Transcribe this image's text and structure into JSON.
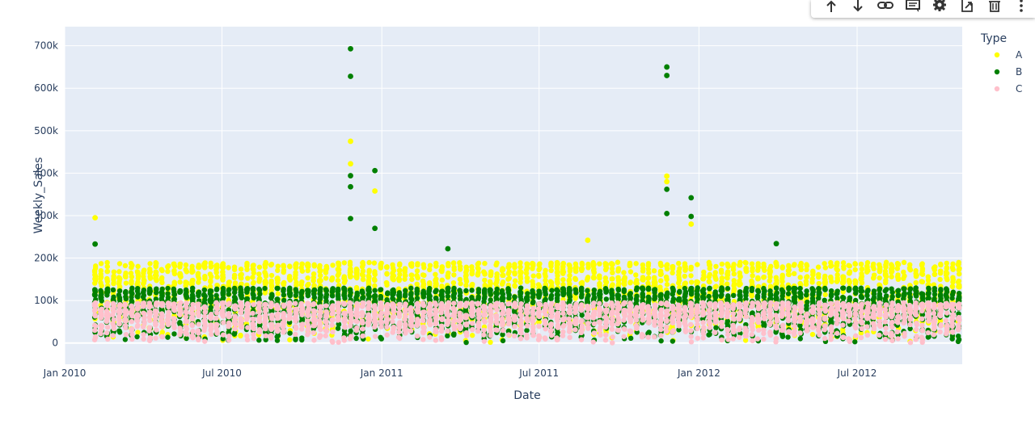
{
  "toolbar": {
    "buttons": [
      {
        "icon": "arrow-up-icon"
      },
      {
        "icon": "arrow-down-icon"
      },
      {
        "icon": "link-icon"
      },
      {
        "icon": "comment-icon"
      },
      {
        "icon": "gear-icon"
      },
      {
        "icon": "export-icon"
      },
      {
        "icon": "trash-icon"
      },
      {
        "icon": "more-vert-icon"
      }
    ]
  },
  "chart_data": {
    "type": "scatter",
    "xlabel": "Date",
    "ylabel": "Weekly_Sales",
    "xlim": [
      "2010-01-01",
      "2012-10-30"
    ],
    "ylim": [
      -50000,
      745000
    ],
    "x_ticks": [
      {
        "date": "2010-01-01",
        "label": "Jan 2010"
      },
      {
        "date": "2010-07-01",
        "label": "Jul 2010"
      },
      {
        "date": "2011-01-01",
        "label": "Jan 2011"
      },
      {
        "date": "2011-07-01",
        "label": "Jul 2011"
      },
      {
        "date": "2012-01-01",
        "label": "Jan 2012"
      },
      {
        "date": "2012-07-01",
        "label": "Jul 2012"
      }
    ],
    "y_ticks": [
      {
        "value": 0,
        "label": "0"
      },
      {
        "value": 100000,
        "label": "100k"
      },
      {
        "value": 200000,
        "label": "200k"
      },
      {
        "value": 300000,
        "label": "300k"
      },
      {
        "value": 400000,
        "label": "400k"
      },
      {
        "value": 500000,
        "label": "500k"
      },
      {
        "value": 600000,
        "label": "600k"
      },
      {
        "value": 700000,
        "label": "700k"
      }
    ],
    "grid": true,
    "legend": {
      "title": "Type",
      "placement": "top-right"
    },
    "weeks": {
      "start": "2010-02-05",
      "end": "2012-10-26",
      "interval_days": 7
    },
    "series": [
      {
        "name": "A",
        "color": "#ffff00",
        "typical_range": [
          0,
          190000
        ],
        "peaks": [
          {
            "date": "2010-02-05",
            "value": 295000
          },
          {
            "date": "2010-11-26",
            "value": 475000
          },
          {
            "date": "2010-11-26",
            "value": 422000
          },
          {
            "date": "2010-12-24",
            "value": 358000
          },
          {
            "date": "2011-08-26",
            "value": 242000
          },
          {
            "date": "2011-11-25",
            "value": 393000
          },
          {
            "date": "2011-11-25",
            "value": 380000
          },
          {
            "date": "2011-12-23",
            "value": 280000
          }
        ]
      },
      {
        "name": "B",
        "color": "#008000",
        "typical_range": [
          0,
          130000
        ],
        "peaks": [
          {
            "date": "2010-02-05",
            "value": 233000
          },
          {
            "date": "2010-11-26",
            "value": 693000
          },
          {
            "date": "2010-11-26",
            "value": 628000
          },
          {
            "date": "2010-11-26",
            "value": 394000
          },
          {
            "date": "2010-11-26",
            "value": 368000
          },
          {
            "date": "2010-11-26",
            "value": 293000
          },
          {
            "date": "2010-12-24",
            "value": 406000
          },
          {
            "date": "2010-12-24",
            "value": 270000
          },
          {
            "date": "2011-03-18",
            "value": 222000
          },
          {
            "date": "2011-11-25",
            "value": 650000
          },
          {
            "date": "2011-11-25",
            "value": 630000
          },
          {
            "date": "2011-11-25",
            "value": 362000
          },
          {
            "date": "2011-11-25",
            "value": 305000
          },
          {
            "date": "2011-12-23",
            "value": 342000
          },
          {
            "date": "2011-12-23",
            "value": 298000
          },
          {
            "date": "2012-03-30",
            "value": 234000
          }
        ]
      },
      {
        "name": "C",
        "color": "#ffc0cb",
        "typical_range": [
          0,
          95000
        ],
        "peaks": []
      }
    ]
  }
}
